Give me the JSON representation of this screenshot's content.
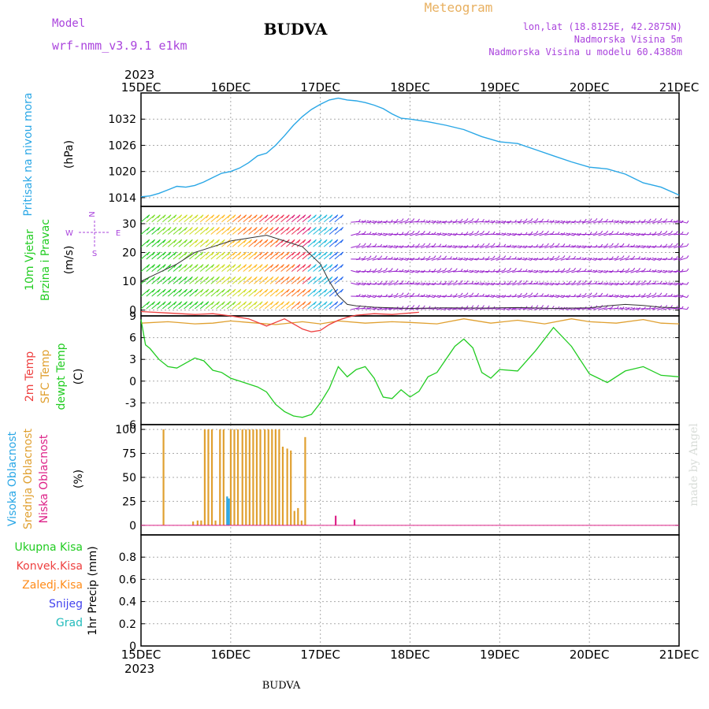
{
  "header": {
    "model_label": "Model",
    "model_name": "wrf-nmm_v3.9.1 e1km",
    "station": "BUDVA",
    "product": "Meteogram",
    "lonlat": "lon,lat (18.8125E, 42.2875N)",
    "elevation": "Nadmorska Visina 5m",
    "model_elevation": "Nadmorska Visina u modelu 60.4388m",
    "year": "2023",
    "footer_station": "BUDVA",
    "credit": "made by Angel"
  },
  "colors": {
    "pressure": "#2aa7e6",
    "wind_green": "#22cc22",
    "temp2m": "#ee4040",
    "sfc": "#e0a030",
    "dewpt": "#22cc22",
    "cloud_high": "#2aa7e6",
    "cloud_mid": "#e0a030",
    "cloud_low": "#dd2288",
    "precip_total": "#22cc22",
    "precip_conv": "#ee4040",
    "precip_frz": "#ff8c1a",
    "snow": "#4444ee",
    "hail": "#22bbbb",
    "label_purple": "#aa44dd",
    "header_orange": "#e8b060",
    "wind_barb_late": "#9922cc",
    "wind_barb_mid": "#2266ee"
  },
  "chart_data": [
    {
      "type": "line",
      "title": "",
      "ylabel_name": "Pritisak na nivou mora",
      "ylabel_unit": "(hPa)",
      "x_ticks": [
        "15DEC",
        "16DEC",
        "17DEC",
        "18DEC",
        "19DEC",
        "20DEC",
        "21DEC"
      ],
      "ylim": [
        1012,
        1038
      ],
      "y_ticks": [
        1014,
        1020,
        1026,
        1032
      ],
      "grid": true,
      "series": [
        {
          "name": "Pritisak na nivou mora",
          "x": [
            0,
            0.1,
            0.2,
            0.3,
            0.4,
            0.5,
            0.6,
            0.7,
            0.8,
            0.9,
            1.0,
            1.1,
            1.2,
            1.3,
            1.4,
            1.5,
            1.6,
            1.7,
            1.8,
            1.9,
            2.0,
            2.1,
            2.2,
            2.3,
            2.4,
            2.5,
            2.6,
            2.7,
            2.8,
            2.9,
            3.0,
            3.2,
            3.4,
            3.6,
            3.8,
            4.0,
            4.2,
            4.4,
            4.6,
            4.8,
            5.0,
            5.2,
            5.4,
            5.6,
            5.8,
            6.0
          ],
          "values": [
            1014.2,
            1014.4,
            1015.0,
            1015.8,
            1016.6,
            1016.4,
            1016.8,
            1017.6,
            1018.6,
            1019.6,
            1020.0,
            1020.8,
            1022.0,
            1023.6,
            1024.2,
            1026.0,
            1028.2,
            1030.6,
            1032.6,
            1034.2,
            1035.4,
            1036.4,
            1036.8,
            1036.4,
            1036.2,
            1035.8,
            1035.2,
            1034.4,
            1033.2,
            1032.2,
            1032.0,
            1031.4,
            1030.6,
            1029.6,
            1028.0,
            1026.8,
            1026.4,
            1025.0,
            1023.6,
            1022.2,
            1021.0,
            1020.6,
            1019.4,
            1017.4,
            1016.4,
            1014.6
          ]
        }
      ]
    },
    {
      "type": "line",
      "title": "",
      "ylabel_name": "10m Vjetar",
      "ylabel_name2": "Brzina i Pravac",
      "ylabel_unit": "(m/s)",
      "compass": {
        "n": "N",
        "s": "S",
        "e": "E",
        "w": "W"
      },
      "ylim": [
        -2,
        36
      ],
      "y_ticks": [
        0,
        10,
        20,
        30
      ],
      "grid": true,
      "series": [
        {
          "name": "speed",
          "x": [
            0,
            0.2,
            0.4,
            0.6,
            0.8,
            1.0,
            1.2,
            1.4,
            1.6,
            1.8,
            2.0,
            2.1,
            2.2,
            2.3,
            2.4,
            2.6,
            2.8,
            3.0,
            3.4,
            3.8,
            4.2,
            4.6,
            5.0,
            5.2,
            5.4,
            5.6,
            5.8,
            6.0
          ],
          "values": [
            10,
            13,
            16,
            20,
            22,
            24,
            25,
            26,
            24,
            22,
            16,
            10,
            5,
            2,
            1.5,
            1.0,
            0.8,
            0.6,
            0.8,
            0.7,
            0.9,
            0.6,
            0.8,
            1.5,
            2.0,
            1.6,
            1.0,
            0.8
          ]
        }
      ]
    },
    {
      "type": "line",
      "title": "",
      "ylabel_names": [
        "2m Temp",
        "SFC Temp",
        "dewpt Temp"
      ],
      "ylabel_unit": "(C)",
      "ylim": [
        -6,
        9
      ],
      "y_ticks": [
        -6,
        -3,
        0,
        3,
        6,
        9
      ],
      "grid": true,
      "series": [
        {
          "name": "2m Temp",
          "x": [
            0,
            0.3,
            0.6,
            0.8,
            1.0,
            1.2,
            1.4,
            1.6,
            1.8,
            1.9,
            2.0,
            2.1,
            2.2,
            2.3,
            2.4,
            2.6,
            2.8,
            3.0,
            3.1
          ],
          "values": [
            9.6,
            9.4,
            9.2,
            9.3,
            9.0,
            8.6,
            7.6,
            8.6,
            7.2,
            6.8,
            7.0,
            7.8,
            8.4,
            8.8,
            9.1,
            9.3,
            9.2,
            9.4,
            9.5
          ]
        },
        {
          "name": "SFC Temp",
          "x": [
            0,
            0.3,
            0.6,
            0.8,
            1.0,
            1.2,
            1.5,
            1.8,
            2.0,
            2.2,
            2.5,
            2.8,
            3.0,
            3.3,
            3.6,
            3.9,
            4.2,
            4.5,
            4.8,
            5.0,
            5.3,
            5.6,
            5.8,
            6.0
          ],
          "values": [
            8.0,
            8.2,
            7.9,
            8.0,
            8.3,
            8.1,
            7.8,
            8.2,
            7.9,
            8.3,
            8.0,
            8.2,
            8.1,
            7.9,
            8.6,
            8.0,
            8.4,
            7.9,
            8.6,
            8.2,
            8.0,
            8.5,
            8.0,
            7.9
          ]
        },
        {
          "name": "dewpt Temp",
          "x": [
            0,
            0.05,
            0.1,
            0.2,
            0.3,
            0.4,
            0.5,
            0.6,
            0.7,
            0.8,
            0.9,
            1.0,
            1.1,
            1.2,
            1.3,
            1.4,
            1.5,
            1.6,
            1.7,
            1.8,
            1.9,
            2.0,
            2.1,
            2.2,
            2.3,
            2.4,
            2.5,
            2.6,
            2.7,
            2.8,
            2.9,
            3.0,
            3.1,
            3.2,
            3.3,
            3.4,
            3.5,
            3.6,
            3.7,
            3.8,
            3.9,
            4.0,
            4.2,
            4.4,
            4.6,
            4.8,
            5.0,
            5.2,
            5.4,
            5.6,
            5.8,
            6.0
          ],
          "values": [
            8.5,
            5.0,
            4.5,
            3.0,
            2.0,
            1.8,
            2.5,
            3.2,
            2.8,
            1.5,
            1.2,
            0.4,
            0.0,
            -0.4,
            -0.8,
            -1.5,
            -3.2,
            -4.2,
            -4.8,
            -5.0,
            -4.6,
            -3.0,
            -1.0,
            2.0,
            0.6,
            1.6,
            2.0,
            0.4,
            -2.2,
            -2.4,
            -1.2,
            -2.2,
            -1.4,
            0.6,
            1.2,
            3.0,
            4.8,
            5.8,
            4.6,
            1.2,
            0.4,
            1.6,
            1.4,
            4.2,
            7.4,
            4.8,
            1.0,
            -0.2,
            1.4,
            2.0,
            0.8,
            0.6
          ]
        }
      ]
    },
    {
      "type": "bar",
      "title": "",
      "ylabel_names": [
        "Visoka Oblacnost",
        "Srednja Oblacnost",
        "Niska Oblacnost"
      ],
      "ylabel_unit": "(%)",
      "ylim": [
        0,
        100
      ],
      "y_ticks": [
        0,
        25,
        50,
        75,
        100
      ],
      "grid": true,
      "series": [
        {
          "name": "Srednja Oblacnost",
          "x": [
            0.25,
            0.58,
            0.63,
            0.67,
            0.71,
            0.75,
            0.79,
            0.83,
            0.88,
            0.92,
            0.96,
            1.0,
            1.04,
            1.08,
            1.13,
            1.17,
            1.21,
            1.25,
            1.29,
            1.33,
            1.38,
            1.42,
            1.46,
            1.5,
            1.54,
            1.58,
            1.63,
            1.67,
            1.71,
            1.75,
            1.79,
            1.83
          ],
          "values": [
            100,
            4,
            5,
            5,
            100,
            100,
            100,
            5,
            100,
            100,
            30,
            100,
            100,
            100,
            100,
            100,
            100,
            100,
            100,
            100,
            100,
            100,
            100,
            100,
            100,
            82,
            80,
            78,
            15,
            18,
            5,
            92
          ]
        },
        {
          "name": "Visoka Oblacnost",
          "x": [
            0.96,
            0.98
          ],
          "values": [
            30,
            28
          ]
        },
        {
          "name": "Niska Oblacnost",
          "x": [
            2.17,
            2.38
          ],
          "values": [
            10,
            6
          ]
        }
      ]
    },
    {
      "type": "line",
      "title": "",
      "legend": [
        "Ukupna Kisa",
        "Konvek.Kisa",
        "Zaledj.Kisa",
        "Snijeg",
        "Grad"
      ],
      "ylabel_name": "1hr Precip",
      "ylabel_unit": "(mm)",
      "ylim": [
        0,
        1
      ],
      "y_ticks": [
        0,
        0.2,
        0.4,
        0.6,
        0.8
      ],
      "y_tick_labels": [
        "0",
        "0.2",
        "0.4",
        "0.6",
        "0.8"
      ],
      "grid": true,
      "series": []
    }
  ]
}
